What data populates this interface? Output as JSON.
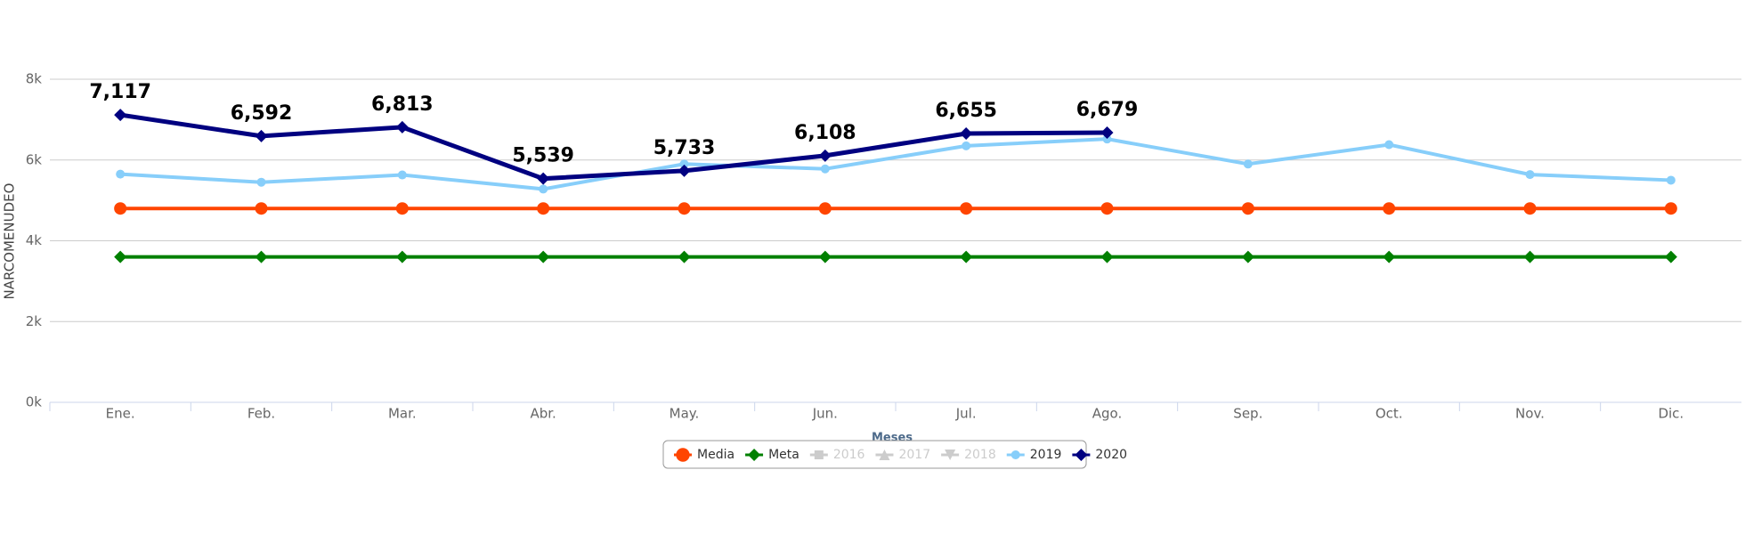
{
  "chart_data": {
    "type": "line",
    "x_label": "Meses",
    "y_label": "NARCOMENUDEO",
    "categories": [
      "Ene.",
      "Feb.",
      "Mar.",
      "Abr.",
      "May.",
      "Jun.",
      "Jul.",
      "Ago.",
      "Sep.",
      "Oct.",
      "Nov.",
      "Dic."
    ],
    "ylim": [
      0,
      8000
    ],
    "yticks": [
      {
        "value": 0,
        "label": "0k"
      },
      {
        "value": 2000,
        "label": "2k"
      },
      {
        "value": 4000,
        "label": "4k"
      },
      {
        "value": 6000,
        "label": "6k"
      },
      {
        "value": 8000,
        "label": "8k"
      }
    ],
    "grid": true,
    "legend": "bottom",
    "series": [
      {
        "name": "Media",
        "color": "#ff4500",
        "marker": "circle",
        "values": [
          4800,
          4800,
          4800,
          4800,
          4800,
          4800,
          4800,
          4800,
          4800,
          4800,
          4800,
          4800
        ]
      },
      {
        "name": "Meta",
        "color": "#008000",
        "marker": "diamond",
        "values": [
          3600,
          3600,
          3600,
          3600,
          3600,
          3600,
          3600,
          3600,
          3600,
          3600,
          3600,
          3600
        ]
      },
      {
        "name": "2016",
        "color": "#cccccc",
        "marker": "square",
        "hidden": true,
        "values": [
          null,
          null,
          null,
          null,
          null,
          null,
          null,
          null,
          null,
          null,
          null,
          null
        ]
      },
      {
        "name": "2017",
        "color": "#cccccc",
        "marker": "triangle",
        "hidden": true,
        "values": [
          null,
          null,
          null,
          null,
          null,
          null,
          null,
          null,
          null,
          null,
          null,
          null
        ]
      },
      {
        "name": "2018",
        "color": "#cccccc",
        "marker": "triangle-down",
        "hidden": true,
        "values": [
          null,
          null,
          null,
          null,
          null,
          null,
          null,
          null,
          null,
          null,
          null,
          null
        ]
      },
      {
        "name": "2019",
        "color": "#87cefa",
        "marker": "circle-small",
        "values": [
          5650,
          5450,
          5630,
          5280,
          5900,
          5780,
          6350,
          6520,
          5900,
          6380,
          5640,
          5500
        ]
      },
      {
        "name": "2020",
        "color": "#000080",
        "marker": "diamond",
        "values": [
          7117,
          6592,
          6813,
          5539,
          5733,
          6108,
          6655,
          6679,
          null,
          null,
          null,
          null
        ],
        "value_labels": [
          "7,117",
          "6,592",
          "6,813",
          "5,539",
          "5,733",
          "6,108",
          "6,655",
          "6,679",
          null,
          null,
          null,
          null
        ]
      }
    ]
  }
}
